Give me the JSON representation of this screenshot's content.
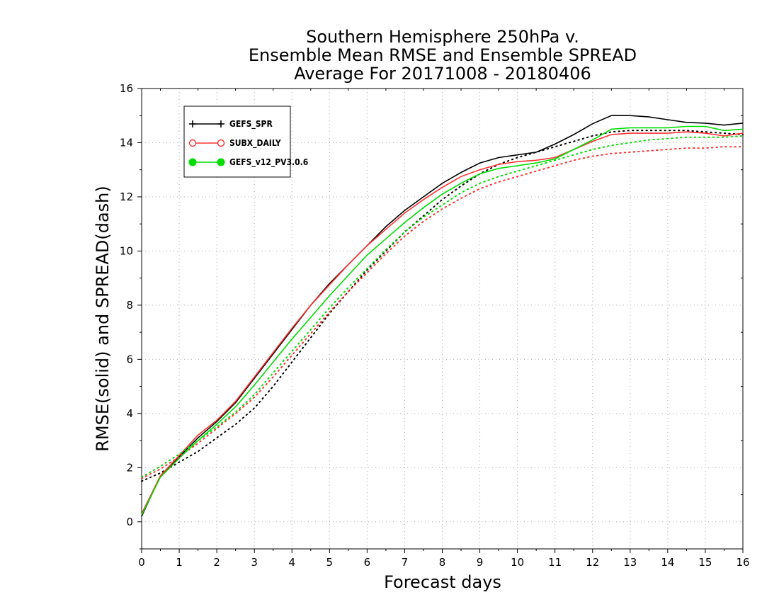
{
  "title_lines": [
    "Southern Hemisphere 250hPa v.",
    "Ensemble Mean RMSE and Ensemble SPREAD",
    "Average For 20171008 - 20180406"
  ],
  "chart_data": {
    "type": "line",
    "title": "Southern Hemisphere 250hPa v. Ensemble Mean RMSE and Ensemble SPREAD Average For 20171008 - 20180406",
    "xlabel": "Forecast days",
    "ylabel": "RMSE(solid) and SPREAD(dash)",
    "xlim": [
      0,
      16
    ],
    "ylim": [
      -1,
      16
    ],
    "xticks": [
      0,
      1,
      2,
      3,
      4,
      5,
      6,
      7,
      8,
      9,
      10,
      11,
      12,
      13,
      14,
      15,
      16
    ],
    "yticks": [
      0,
      2,
      4,
      6,
      8,
      10,
      12,
      14,
      16
    ],
    "grid": true,
    "legend_position": "top-left",
    "x": [
      0,
      0.5,
      1,
      1.5,
      2,
      2.5,
      3,
      3.5,
      4,
      4.5,
      5,
      5.5,
      6,
      6.5,
      7,
      7.5,
      8,
      8.5,
      9,
      9.5,
      10,
      10.5,
      11,
      11.5,
      12,
      12.5,
      13,
      13.5,
      14,
      14.5,
      15,
      15.5,
      16
    ],
    "series": [
      {
        "name": "GEFS_SPR",
        "color": "#000000",
        "marker": "plus",
        "rmse": [
          0.2,
          1.7,
          2.4,
          3.1,
          3.7,
          4.4,
          5.3,
          6.2,
          7.1,
          8.0,
          8.8,
          9.5,
          10.2,
          10.9,
          11.5,
          12.0,
          12.5,
          12.9,
          13.25,
          13.45,
          13.55,
          13.65,
          13.95,
          14.3,
          14.7,
          15.0,
          15.0,
          14.95,
          14.85,
          14.75,
          14.72,
          14.65,
          14.72
        ],
        "spread": [
          1.5,
          1.8,
          2.2,
          2.6,
          3.1,
          3.6,
          4.2,
          5.0,
          5.9,
          6.8,
          7.7,
          8.5,
          9.3,
          10.0,
          10.7,
          11.3,
          11.9,
          12.4,
          12.85,
          13.2,
          13.45,
          13.65,
          13.85,
          14.05,
          14.25,
          14.4,
          14.45,
          14.45,
          14.45,
          14.45,
          14.4,
          14.35,
          14.3
        ]
      },
      {
        "name": "SUBX_DAILY",
        "color": "#ff3030",
        "marker": "open-circle",
        "rmse": [
          0.3,
          1.7,
          2.45,
          3.2,
          3.75,
          4.45,
          5.35,
          6.25,
          7.15,
          8.0,
          8.75,
          9.5,
          10.2,
          10.8,
          11.4,
          11.9,
          12.35,
          12.75,
          13.0,
          13.2,
          13.3,
          13.35,
          13.45,
          13.75,
          14.05,
          14.3,
          14.35,
          14.35,
          14.35,
          14.4,
          14.35,
          14.25,
          14.35
        ],
        "spread": [
          1.6,
          1.95,
          2.4,
          2.9,
          3.45,
          4.0,
          4.6,
          5.35,
          6.15,
          6.95,
          7.75,
          8.5,
          9.2,
          9.9,
          10.55,
          11.1,
          11.55,
          11.95,
          12.3,
          12.55,
          12.75,
          12.95,
          13.15,
          13.35,
          13.5,
          13.6,
          13.65,
          13.7,
          13.75,
          13.8,
          13.8,
          13.85,
          13.85
        ]
      },
      {
        "name": "GEFS_v12_PV3.0.6",
        "color": "#00dd00",
        "marker": "filled-circle",
        "rmse": [
          0.25,
          1.65,
          2.35,
          3.0,
          3.6,
          4.25,
          5.05,
          5.9,
          6.75,
          7.55,
          8.35,
          9.1,
          9.85,
          10.45,
          11.05,
          11.6,
          12.1,
          12.5,
          12.85,
          13.05,
          13.15,
          13.25,
          13.4,
          13.75,
          14.1,
          14.5,
          14.55,
          14.55,
          14.55,
          14.6,
          14.6,
          14.45,
          14.5
        ],
        "spread": [
          1.65,
          2.05,
          2.5,
          3.0,
          3.5,
          4.05,
          4.7,
          5.5,
          6.3,
          7.1,
          7.9,
          8.65,
          9.35,
          10.05,
          10.7,
          11.25,
          11.7,
          12.15,
          12.5,
          12.75,
          12.95,
          13.15,
          13.35,
          13.55,
          13.75,
          13.9,
          14.0,
          14.1,
          14.15,
          14.2,
          14.2,
          14.2,
          14.25
        ]
      }
    ]
  }
}
